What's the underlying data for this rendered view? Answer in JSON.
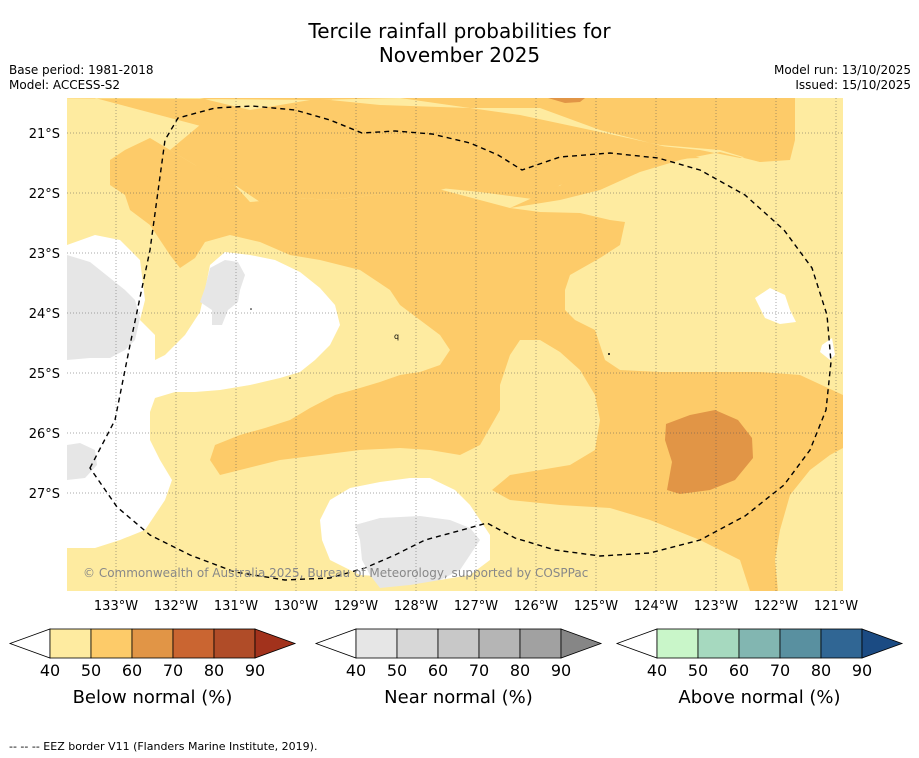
{
  "title": "Tercile rainfall probabilities for\nNovember 2025",
  "meta": {
    "base_period": "Base period: 1981-2018",
    "model": "Model: ACCESS-S2",
    "model_run": "Model run: 13/10/2025",
    "issued": "Issued: 15/10/2025"
  },
  "map": {
    "lat_labels": [
      "21°S",
      "22°S",
      "23°S",
      "24°S",
      "25°S",
      "26°S",
      "27°S"
    ],
    "lon_labels": [
      "133°W",
      "132°W",
      "131°W",
      "130°W",
      "129°W",
      "128°W",
      "127°W",
      "126°W",
      "125°W",
      "124°W",
      "123°W",
      "122°W",
      "121°W"
    ],
    "copyright": "© Commonwealth of Australia 2025, Bureau of Meteorology, supported by COSPPac",
    "stray_marks": [
      "q"
    ]
  },
  "legends": [
    {
      "id": "below",
      "title": "Below normal (%)",
      "ticks": [
        "40",
        "50",
        "60",
        "70",
        "80",
        "90"
      ],
      "colors": [
        "#ffffff",
        "#feeba0",
        "#fdcb69",
        "#e19546",
        "#ca6531",
        "#b04c28",
        "#a2321c"
      ]
    },
    {
      "id": "near",
      "title": "Near normal (%)",
      "ticks": [
        "40",
        "50",
        "60",
        "70",
        "80",
        "90"
      ],
      "colors": [
        "#ffffff",
        "#e6e6e6",
        "#d7d7d7",
        "#c8c8c8",
        "#b5b5b5",
        "#a1a1a1",
        "#868686"
      ]
    },
    {
      "id": "above",
      "title": "Above normal (%)",
      "ticks": [
        "40",
        "50",
        "60",
        "70",
        "80",
        "90"
      ],
      "colors": [
        "#ffffff",
        "#c9f6c9",
        "#a6d9bf",
        "#82b6b1",
        "#5990a0",
        "#306694",
        "#1b4b83"
      ]
    }
  ],
  "colors": {
    "below_50": "#feeba0",
    "below_60": "#fdcb69",
    "below_70": "#e19546",
    "near_50": "#e6e6e6",
    "white": "#ffffff"
  },
  "footnote": "--  --  -- EEZ border V11 (Flanders Marine Institute, 2019)."
}
